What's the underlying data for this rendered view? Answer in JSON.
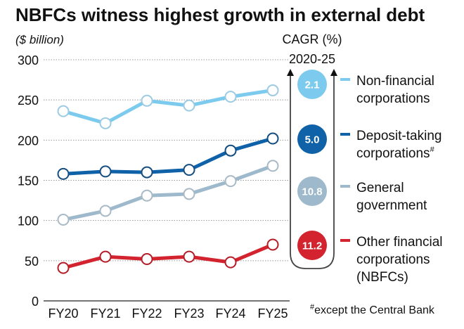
{
  "chart_data": {
    "type": "line",
    "title": "NBFCs witness highest growth in external debt",
    "ylabel": "($ billion)",
    "xlabel": "",
    "ylim": [
      0,
      300
    ],
    "yticks": [
      0,
      50,
      100,
      150,
      200,
      250,
      300
    ],
    "yticklabels": [
      "0",
      "50",
      "100",
      "150",
      "200",
      "250",
      "300"
    ],
    "grid": true,
    "categories": [
      "FY20",
      "FY21",
      "FY22",
      "FY23",
      "FY24",
      "FY25"
    ],
    "series": [
      {
        "name": "Non-financial corporations",
        "label_lines": [
          "Non-financial",
          "corporations"
        ],
        "color": "#7ccbee",
        "cagr": "2.1",
        "marker_edge": "#9dcbe2",
        "values": [
          236,
          221,
          249,
          243,
          254,
          262
        ]
      },
      {
        "name": "Deposit-taking corporations#",
        "label_lines": [
          "Deposit-taking",
          "corporations"
        ],
        "superscript": "#",
        "color": "#0f62a8",
        "cagr": "5.0",
        "marker_edge": "#144d80",
        "values": [
          158,
          161,
          160,
          163,
          187,
          202
        ]
      },
      {
        "name": "General government",
        "label_lines": [
          "General",
          "government"
        ],
        "color": "#9db9cb",
        "cagr": "10.8",
        "marker_edge": "#a9bac6",
        "values": [
          101,
          112,
          131,
          133,
          149,
          168
        ]
      },
      {
        "name": "Other financial corporations (NBFCs)",
        "label_lines": [
          "Other financial",
          "corporations",
          "(NBFCs)"
        ],
        "color": "#d2232e",
        "cagr": "11.2",
        "marker_edge": "#b41e28",
        "values": [
          41,
          55,
          52,
          55,
          48,
          70
        ]
      }
    ],
    "cagr_header": [
      "CAGR (%)",
      "2020-25"
    ],
    "footnote": "except the Central Bank",
    "footnote_mark": "#",
    "legend_position": "right"
  }
}
